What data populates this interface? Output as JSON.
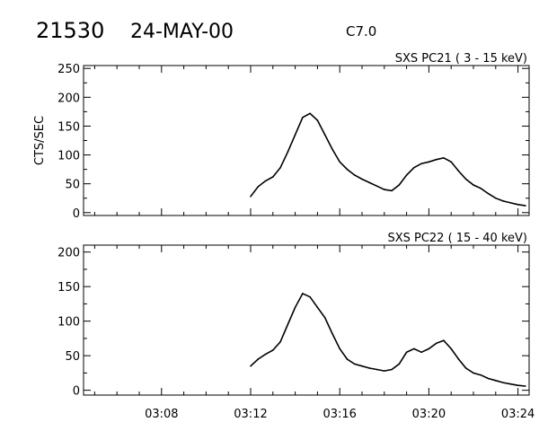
{
  "header": {
    "event_number": "21530",
    "date": "24-MAY-00",
    "flare_class": "C7.0"
  },
  "colors": {
    "background": "#ffffff",
    "line": "#000000"
  },
  "chart_data": [
    {
      "type": "line",
      "title": "SXS PC21  (  3 - 15 keV)",
      "ylabel": "CTS/SEC",
      "xlabel": "",
      "ylim": [
        -5,
        255
      ],
      "xlim": [
        "03:04:30",
        "03:24:30"
      ],
      "yticks": [
        0,
        50,
        100,
        150,
        200,
        250
      ],
      "xticks": [
        "03:08",
        "03:12",
        "03:16",
        "03:20",
        "03:24"
      ],
      "xtick_labels_shown": false,
      "grid": false,
      "x": [
        "03:12:00",
        "03:12:20",
        "03:12:40",
        "03:13:00",
        "03:13:20",
        "03:13:40",
        "03:14:00",
        "03:14:20",
        "03:14:40",
        "03:15:00",
        "03:15:20",
        "03:15:40",
        "03:16:00",
        "03:16:20",
        "03:16:40",
        "03:17:00",
        "03:17:20",
        "03:17:40",
        "03:18:00",
        "03:18:20",
        "03:18:40",
        "03:19:00",
        "03:19:20",
        "03:19:40",
        "03:20:00",
        "03:20:20",
        "03:20:40",
        "03:21:00",
        "03:21:20",
        "03:21:40",
        "03:22:00",
        "03:22:20",
        "03:22:40",
        "03:23:00",
        "03:23:20",
        "03:23:40",
        "03:24:00",
        "03:24:20"
      ],
      "values": [
        28,
        45,
        55,
        62,
        78,
        105,
        135,
        165,
        172,
        160,
        135,
        110,
        88,
        75,
        65,
        58,
        52,
        46,
        40,
        38,
        48,
        65,
        78,
        85,
        88,
        92,
        95,
        88,
        72,
        58,
        48,
        42,
        33,
        25,
        20,
        17,
        14,
        12
      ]
    },
    {
      "type": "line",
      "title": "SXS PC22  ( 15 - 40 keV)",
      "ylabel": "",
      "xlabel": "",
      "ylim": [
        -7,
        210
      ],
      "xlim": [
        "03:04:30",
        "03:24:30"
      ],
      "yticks": [
        0,
        50,
        100,
        150,
        200
      ],
      "xticks": [
        "03:08",
        "03:12",
        "03:16",
        "03:20",
        "03:24"
      ],
      "xtick_labels_shown": true,
      "grid": false,
      "x": [
        "03:12:00",
        "03:12:20",
        "03:12:40",
        "03:13:00",
        "03:13:20",
        "03:13:40",
        "03:14:00",
        "03:14:20",
        "03:14:40",
        "03:15:00",
        "03:15:20",
        "03:15:40",
        "03:16:00",
        "03:16:20",
        "03:16:40",
        "03:17:00",
        "03:17:20",
        "03:17:40",
        "03:18:00",
        "03:18:20",
        "03:18:40",
        "03:19:00",
        "03:19:20",
        "03:19:40",
        "03:20:00",
        "03:20:20",
        "03:20:40",
        "03:21:00",
        "03:21:20",
        "03:21:40",
        "03:22:00",
        "03:22:20",
        "03:22:40",
        "03:23:00",
        "03:23:20",
        "03:23:40",
        "03:24:00",
        "03:24:20"
      ],
      "values": [
        35,
        45,
        52,
        58,
        70,
        95,
        120,
        140,
        135,
        120,
        105,
        82,
        60,
        45,
        38,
        35,
        32,
        30,
        28,
        30,
        38,
        55,
        60,
        55,
        60,
        68,
        72,
        60,
        45,
        32,
        25,
        22,
        17,
        14,
        11,
        9,
        7,
        6
      ]
    }
  ]
}
